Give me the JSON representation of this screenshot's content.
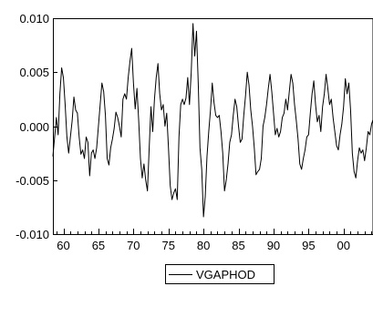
{
  "chart_data": {
    "type": "line",
    "title": "",
    "xlabel": "",
    "ylabel": "",
    "xlim": [
      1958.5,
      2004.2
    ],
    "ylim": [
      -0.01,
      0.01
    ],
    "x_ticks": [
      60,
      65,
      70,
      75,
      80,
      85,
      90,
      95,
      0
    ],
    "x_tick_labels": [
      "60",
      "65",
      "70",
      "75",
      "80",
      "85",
      "90",
      "95",
      "00"
    ],
    "y_ticks": [
      -0.01,
      -0.005,
      0.0,
      0.005,
      0.01
    ],
    "y_tick_labels": [
      "-0.010",
      "-0.005",
      "0.000",
      "0.005",
      "0.010"
    ],
    "grid": false,
    "legend_position": "bottom-center",
    "series": [
      {
        "name": "VGAPHOD",
        "color": "#000000",
        "points": [
          [
            1958.5,
            -0.0028
          ],
          [
            1959.0,
            0.0008
          ],
          [
            1959.25,
            -0.0008
          ],
          [
            1959.5,
            0.003
          ],
          [
            1959.75,
            0.0054
          ],
          [
            1960.0,
            0.0045
          ],
          [
            1960.25,
            0.002
          ],
          [
            1960.5,
            -0.001
          ],
          [
            1960.75,
            -0.0025
          ],
          [
            1961.0,
            -0.001
          ],
          [
            1961.25,
            0.0005
          ],
          [
            1961.5,
            0.0027
          ],
          [
            1961.75,
            0.0015
          ],
          [
            1962.0,
            0.0012
          ],
          [
            1962.25,
            -0.001
          ],
          [
            1962.5,
            -0.0026
          ],
          [
            1962.75,
            -0.0022
          ],
          [
            1963.0,
            -0.003
          ],
          [
            1963.25,
            -0.001
          ],
          [
            1963.5,
            -0.0015
          ],
          [
            1963.75,
            -0.0046
          ],
          [
            1964.0,
            -0.0025
          ],
          [
            1964.25,
            -0.0022
          ],
          [
            1964.5,
            -0.003
          ],
          [
            1964.75,
            -0.002
          ],
          [
            1965.0,
            0.0
          ],
          [
            1965.25,
            0.002
          ],
          [
            1965.5,
            0.004
          ],
          [
            1965.75,
            0.0032
          ],
          [
            1966.0,
            0.001
          ],
          [
            1966.25,
            -0.003
          ],
          [
            1966.5,
            -0.0036
          ],
          [
            1966.75,
            -0.002
          ],
          [
            1967.0,
            -0.0012
          ],
          [
            1967.25,
            -0.0002
          ],
          [
            1967.5,
            0.0013
          ],
          [
            1967.75,
            0.0008
          ],
          [
            1968.0,
            0.0
          ],
          [
            1968.25,
            -0.001
          ],
          [
            1968.5,
            0.0025
          ],
          [
            1968.75,
            0.003
          ],
          [
            1969.0,
            0.0025
          ],
          [
            1969.25,
            0.0045
          ],
          [
            1969.5,
            0.006
          ],
          [
            1969.75,
            0.0072
          ],
          [
            1970.0,
            0.004
          ],
          [
            1970.25,
            0.0016
          ],
          [
            1970.5,
            0.0035
          ],
          [
            1970.75,
            0.0005
          ],
          [
            1971.0,
            -0.003
          ],
          [
            1971.25,
            -0.0048
          ],
          [
            1971.5,
            -0.0035
          ],
          [
            1971.75,
            -0.005
          ],
          [
            1972.0,
            -0.006
          ],
          [
            1972.25,
            -0.002
          ],
          [
            1972.5,
            0.0018
          ],
          [
            1972.75,
            -0.0005
          ],
          [
            1973.0,
            0.0025
          ],
          [
            1973.25,
            0.0045
          ],
          [
            1973.5,
            0.0058
          ],
          [
            1973.75,
            0.003
          ],
          [
            1974.0,
            0.0015
          ],
          [
            1974.25,
            0.002
          ],
          [
            1974.5,
            0.0
          ],
          [
            1974.75,
            0.0012
          ],
          [
            1975.0,
            -0.002
          ],
          [
            1975.25,
            -0.0055
          ],
          [
            1975.5,
            -0.0068
          ],
          [
            1975.75,
            -0.0062
          ],
          [
            1976.0,
            -0.0058
          ],
          [
            1976.25,
            -0.0068
          ],
          [
            1976.5,
            -0.001
          ],
          [
            1976.75,
            0.002
          ],
          [
            1977.0,
            0.0025
          ],
          [
            1977.25,
            0.002
          ],
          [
            1977.5,
            0.0026
          ],
          [
            1977.75,
            0.0045
          ],
          [
            1978.0,
            0.002
          ],
          [
            1978.25,
            0.005
          ],
          [
            1978.5,
            0.0095
          ],
          [
            1978.75,
            0.0065
          ],
          [
            1979.0,
            0.0088
          ],
          [
            1979.25,
            0.004
          ],
          [
            1979.5,
            -0.002
          ],
          [
            1979.75,
            -0.004
          ],
          [
            1980.0,
            -0.0084
          ],
          [
            1980.25,
            -0.0065
          ],
          [
            1980.5,
            -0.0028
          ],
          [
            1980.75,
            -0.0005
          ],
          [
            1981.0,
            0.0015
          ],
          [
            1981.25,
            0.004
          ],
          [
            1981.5,
            0.0022
          ],
          [
            1981.75,
            0.001
          ],
          [
            1982.0,
            0.0008
          ],
          [
            1982.25,
            0.001
          ],
          [
            1982.5,
            -0.0005
          ],
          [
            1982.75,
            -0.0025
          ],
          [
            1983.0,
            -0.006
          ],
          [
            1983.25,
            -0.005
          ],
          [
            1983.5,
            -0.0035
          ],
          [
            1983.75,
            -0.0015
          ],
          [
            1984.0,
            -0.0008
          ],
          [
            1984.25,
            0.001
          ],
          [
            1984.5,
            0.0025
          ],
          [
            1984.75,
            0.0018
          ],
          [
            1985.0,
            0.0
          ],
          [
            1985.25,
            -0.0015
          ],
          [
            1985.5,
            -0.0012
          ],
          [
            1985.75,
            0.001
          ],
          [
            1986.0,
            0.0028
          ],
          [
            1986.25,
            0.005
          ],
          [
            1986.5,
            0.0038
          ],
          [
            1986.75,
            0.0015
          ],
          [
            1987.0,
            0.0
          ],
          [
            1987.25,
            -0.002
          ],
          [
            1987.5,
            -0.0045
          ],
          [
            1987.75,
            -0.0042
          ],
          [
            1988.0,
            -0.004
          ],
          [
            1988.25,
            -0.003
          ],
          [
            1988.5,
            0.0
          ],
          [
            1988.75,
            0.0008
          ],
          [
            1989.0,
            0.002
          ],
          [
            1989.25,
            0.0035
          ],
          [
            1989.5,
            0.0048
          ],
          [
            1989.75,
            0.0032
          ],
          [
            1990.0,
            0.0012
          ],
          [
            1990.25,
            -0.0008
          ],
          [
            1990.5,
            -0.0002
          ],
          [
            1990.75,
            -0.001
          ],
          [
            1991.0,
            -0.0005
          ],
          [
            1991.25,
            0.0008
          ],
          [
            1991.5,
            0.0012
          ],
          [
            1991.75,
            0.0025
          ],
          [
            1992.0,
            0.0015
          ],
          [
            1992.25,
            0.0032
          ],
          [
            1992.5,
            0.0048
          ],
          [
            1992.75,
            0.004
          ],
          [
            1993.0,
            0.002
          ],
          [
            1993.25,
            0.0005
          ],
          [
            1993.5,
            -0.0012
          ],
          [
            1993.75,
            -0.0035
          ],
          [
            1994.0,
            -0.004
          ],
          [
            1994.25,
            -0.003
          ],
          [
            1994.5,
            -0.0022
          ],
          [
            1994.75,
            -0.001
          ],
          [
            1995.0,
            -0.0008
          ],
          [
            1995.25,
            0.0012
          ],
          [
            1995.5,
            0.003
          ],
          [
            1995.75,
            0.0042
          ],
          [
            1996.0,
            0.002
          ],
          [
            1996.25,
            0.0004
          ],
          [
            1996.5,
            0.001
          ],
          [
            1996.75,
            -0.0005
          ],
          [
            1997.0,
            0.0018
          ],
          [
            1997.25,
            0.003
          ],
          [
            1997.5,
            0.0048
          ],
          [
            1997.75,
            0.0035
          ],
          [
            1998.0,
            0.002
          ],
          [
            1998.25,
            0.0025
          ],
          [
            1998.5,
            0.0008
          ],
          [
            1998.75,
            -0.0005
          ],
          [
            1999.0,
            -0.0018
          ],
          [
            1999.25,
            -0.0022
          ],
          [
            1999.5,
            -0.0008
          ],
          [
            1999.75,
            0.0002
          ],
          [
            2000.0,
            0.0018
          ],
          [
            2000.25,
            0.0044
          ],
          [
            2000.5,
            0.003
          ],
          [
            2000.75,
            0.004
          ],
          [
            2001.0,
            0.0015
          ],
          [
            2001.25,
            -0.0025
          ],
          [
            2001.5,
            -0.0042
          ],
          [
            2001.75,
            -0.0048
          ],
          [
            2002.0,
            -0.0032
          ],
          [
            2002.25,
            -0.002
          ],
          [
            2002.5,
            -0.0025
          ],
          [
            2002.75,
            -0.0022
          ],
          [
            2003.0,
            -0.0032
          ],
          [
            2003.25,
            -0.002
          ],
          [
            2003.5,
            -0.0005
          ],
          [
            2003.75,
            -0.0008
          ],
          [
            2004.0,
            0.0002
          ],
          [
            2004.2,
            0.0006
          ]
        ]
      }
    ]
  }
}
